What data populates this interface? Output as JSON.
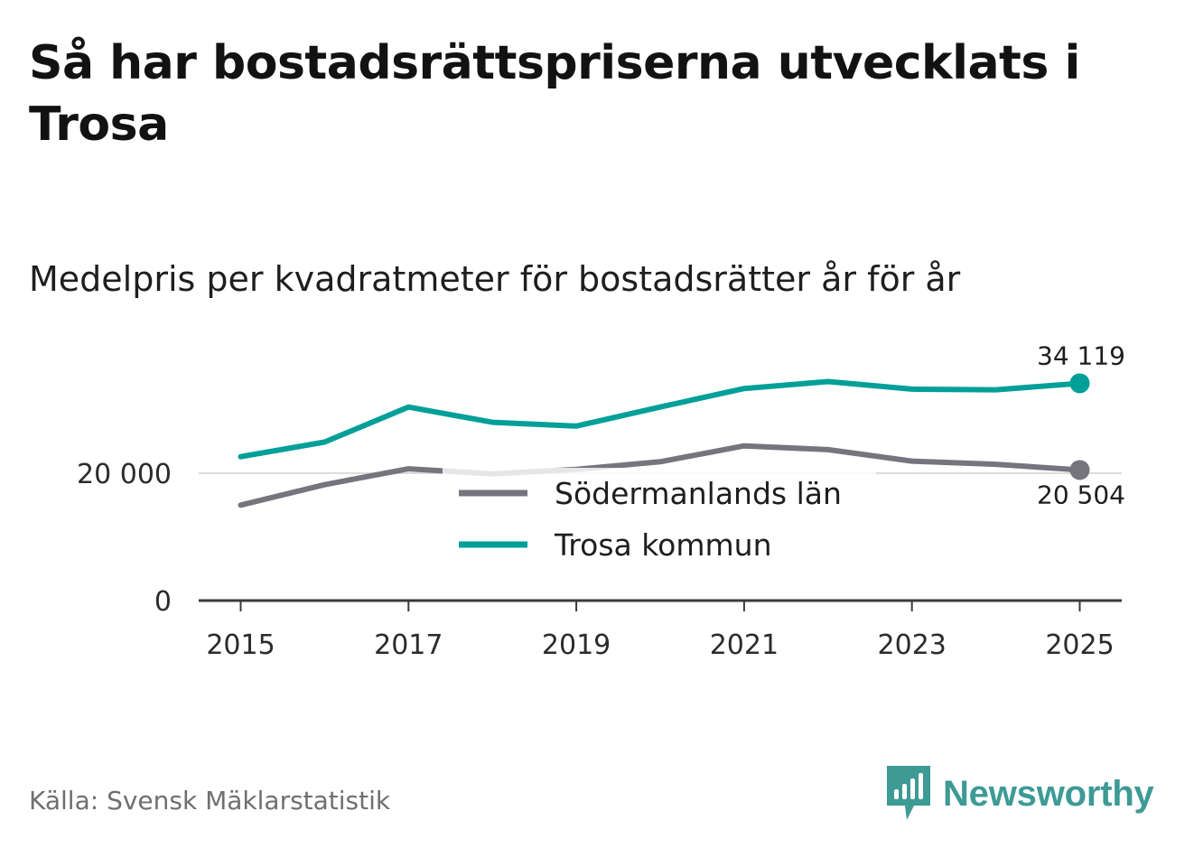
{
  "header": {
    "title": "Så har bostadsrättspriserna utvecklats i Trosa",
    "subtitle": "Medelpris per kvadratmeter för bostadsrätter år för år"
  },
  "footer": {
    "source": "Källa: Svensk Mäklarstatistik",
    "brand": "Newsworthy"
  },
  "colors": {
    "county": "#76757e",
    "municipality": "#009f98",
    "axis": "#3a3a3a",
    "gridline": "#dcdcdc"
  },
  "chart_data": {
    "type": "line",
    "title": "Medelpris per kvadratmeter för bostadsrätter år för år",
    "xlabel": "",
    "ylabel": "",
    "x": [
      2015,
      2016,
      2017,
      2018,
      2019,
      2020,
      2021,
      2022,
      2023,
      2024,
      2025
    ],
    "x_ticks": [
      "2015",
      "2017",
      "2019",
      "2021",
      "2023",
      "2025"
    ],
    "y_ticks": [
      "0",
      "20 000"
    ],
    "y_tick_values": [
      0,
      20000
    ],
    "ylim": [
      0,
      34500
    ],
    "series": [
      {
        "name": "Södermanlands län",
        "color_key": "county",
        "values": [
          15000,
          18200,
          20700,
          19900,
          20600,
          21800,
          24300,
          23700,
          21900,
          21400,
          20504
        ],
        "end_label": "20 504"
      },
      {
        "name": "Trosa kommun",
        "color_key": "municipality",
        "values": [
          22600,
          24900,
          30400,
          28000,
          27400,
          30400,
          33300,
          34400,
          33200,
          33100,
          34119
        ],
        "end_label": "34 119"
      }
    ],
    "legend": [
      "Södermanlands län",
      "Trosa kommun"
    ],
    "legend_position": "center"
  }
}
